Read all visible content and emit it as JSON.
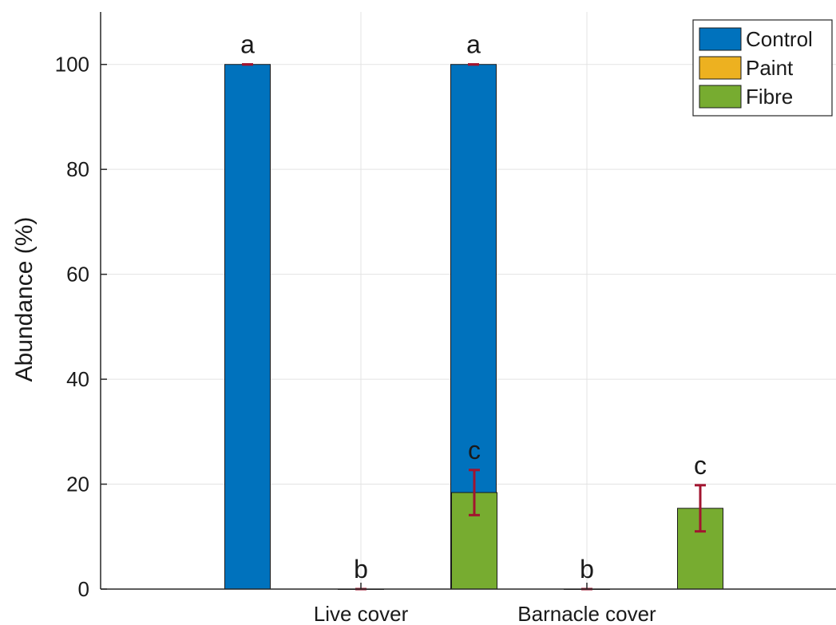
{
  "chart_data": {
    "type": "bar",
    "title": "",
    "xlabel": "",
    "ylabel": "Abundance (%)",
    "ylim": [
      0,
      110
    ],
    "yticks": [
      0,
      20,
      40,
      60,
      80,
      100
    ],
    "categories": [
      "Live cover",
      "Barnacle cover"
    ],
    "grid": true,
    "legend_position": "top-right",
    "error_bar_color": "#a2142f",
    "series": [
      {
        "name": "Control",
        "color": "#0072bd",
        "values": [
          100,
          100
        ],
        "errors": [
          0,
          0
        ],
        "labels": [
          "a",
          "a"
        ]
      },
      {
        "name": "Paint",
        "color": "#edb120",
        "values": [
          0,
          0
        ],
        "errors": [
          0,
          0
        ],
        "labels": [
          "b",
          "b"
        ]
      },
      {
        "name": "Fibre",
        "color": "#77ac30",
        "values": [
          18.4,
          15.4
        ],
        "errors": [
          4.3,
          4.4
        ],
        "labels": [
          "c",
          "c"
        ]
      }
    ]
  }
}
